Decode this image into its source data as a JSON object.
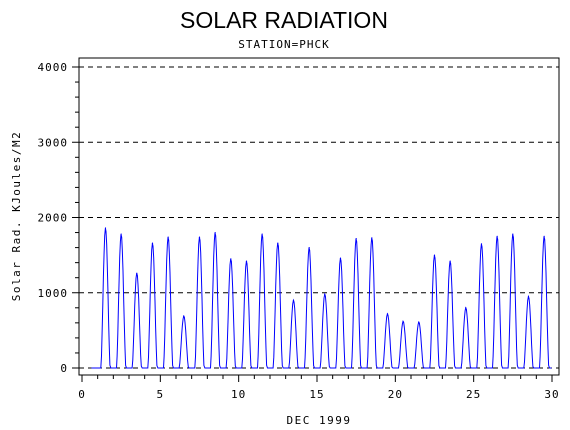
{
  "chart_data": {
    "type": "line",
    "title": "SOLAR RADIATION",
    "subtitle": "STATION=PHCK",
    "xlabel": "DEC 1999",
    "ylabel": "Solar Rad. KJoules/M2",
    "xlim": [
      0,
      30
    ],
    "ylim": [
      0,
      4000
    ],
    "x_ticks": [
      0,
      5,
      10,
      15,
      20,
      25,
      30
    ],
    "x_tick_labels": [
      "0",
      "5",
      "10",
      "15",
      "20",
      "25",
      "30"
    ],
    "y_ticks": [
      0,
      1000,
      2000,
      3000,
      4000
    ],
    "y_tick_labels": [
      "0",
      "1000",
      "2000",
      "3000",
      "4000"
    ],
    "grid": "horizontal dashed at 1000, 2000, 3000, 4000",
    "line_color": "#0000ff",
    "series": [
      {
        "daily_peaks": [
          {
            "day": 1,
            "peak": 1860
          },
          {
            "day": 2,
            "peak": 1780
          },
          {
            "day": 3,
            "peak": 1260
          },
          {
            "day": 4,
            "peak": 1660
          },
          {
            "day": 5,
            "peak": 1740
          },
          {
            "day": 6,
            "peak": 690
          },
          {
            "day": 7,
            "peak": 1740
          },
          {
            "day": 8,
            "peak": 1800
          },
          {
            "day": 9,
            "peak": 1450
          },
          {
            "day": 10,
            "peak": 1420
          },
          {
            "day": 11,
            "peak": 1780
          },
          {
            "day": 12,
            "peak": 1660
          },
          {
            "day": 13,
            "peak": 900
          },
          {
            "day": 14,
            "peak": 1600
          },
          {
            "day": 15,
            "peak": 980
          },
          {
            "day": 16,
            "peak": 1460
          },
          {
            "day": 17,
            "peak": 1720
          },
          {
            "day": 18,
            "peak": 1730
          },
          {
            "day": 19,
            "peak": 720
          },
          {
            "day": 20,
            "peak": 620
          },
          {
            "day": 21,
            "peak": 610
          },
          {
            "day": 22,
            "peak": 1500
          },
          {
            "day": 23,
            "peak": 1420
          },
          {
            "day": 24,
            "peak": 800
          },
          {
            "day": 25,
            "peak": 1650
          },
          {
            "day": 26,
            "peak": 1750
          },
          {
            "day": 27,
            "peak": 1780
          },
          {
            "day": 28,
            "peak": 950
          },
          {
            "day": 29,
            "peak": 1750
          }
        ]
      }
    ]
  }
}
